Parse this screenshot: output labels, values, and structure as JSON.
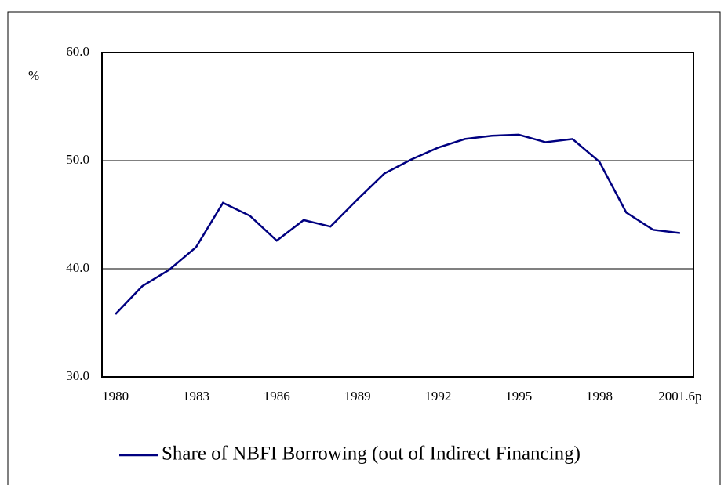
{
  "chart_data": {
    "type": "line",
    "y_label": "%",
    "categories": [
      "1980",
      null,
      null,
      "1983",
      null,
      null,
      "1986",
      null,
      null,
      "1989",
      null,
      null,
      "1992",
      null,
      null,
      "1995",
      null,
      null,
      "1998",
      null,
      null,
      "2001.6p"
    ],
    "series": [
      {
        "name": "Share of NBFI Borrowing (out of Indirect Financing)",
        "color": "#000080",
        "values": [
          35.8,
          38.4,
          39.9,
          42.0,
          46.1,
          44.9,
          42.6,
          44.5,
          43.9,
          46.4,
          48.8,
          50.1,
          51.2,
          52.0,
          52.3,
          52.4,
          51.7,
          52.0,
          49.9,
          45.2,
          43.6,
          43.3
        ]
      }
    ],
    "ylim": [
      30,
      60
    ],
    "yticks": [
      {
        "value": 30,
        "label": "30.0"
      },
      {
        "value": 40,
        "label": "40.0"
      },
      {
        "value": 50,
        "label": "50.0"
      },
      {
        "value": 60,
        "label": "60.0"
      }
    ],
    "grid": true,
    "legend": "bottom"
  }
}
